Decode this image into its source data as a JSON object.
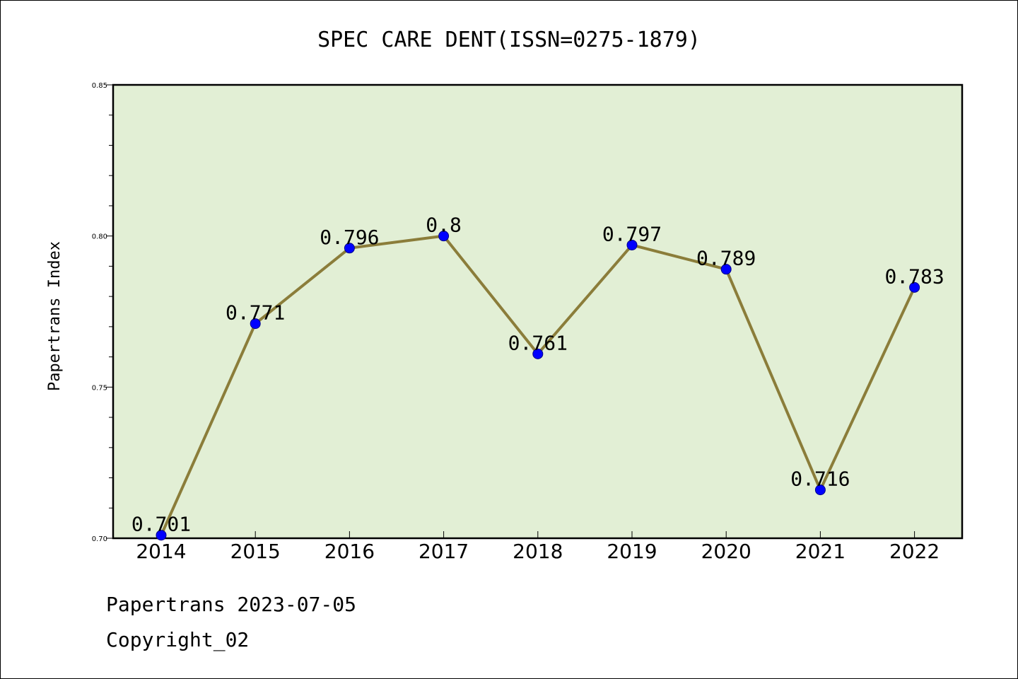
{
  "chart_data": {
    "type": "line",
    "title": "SPEC CARE DENT(ISSN=0275-1879)",
    "xlabel": "",
    "ylabel": "Papertrans Index",
    "categories": [
      "2014",
      "2015",
      "2016",
      "2017",
      "2018",
      "2019",
      "2020",
      "2021",
      "2022"
    ],
    "series": [
      {
        "values": [
          0.701,
          0.771,
          0.796,
          0.8,
          0.761,
          0.797,
          0.789,
          0.716,
          0.783
        ],
        "labels": [
          "0.701",
          "0.771",
          "0.796",
          "0.8",
          "0.761",
          "0.797",
          "0.789",
          "0.716",
          "0.783"
        ],
        "line_color": "#8b7d3a",
        "marker_color": "#0000ff"
      }
    ],
    "ylim": [
      0.7,
      0.85
    ],
    "yticks": [
      "0.70",
      "0.75",
      "0.80",
      "0.85"
    ],
    "plot_background": "#e2efd5",
    "grid": false,
    "legend": "none"
  },
  "footer": {
    "line1": "Papertrans 2023-07-05",
    "line2": "Copyright_02"
  }
}
